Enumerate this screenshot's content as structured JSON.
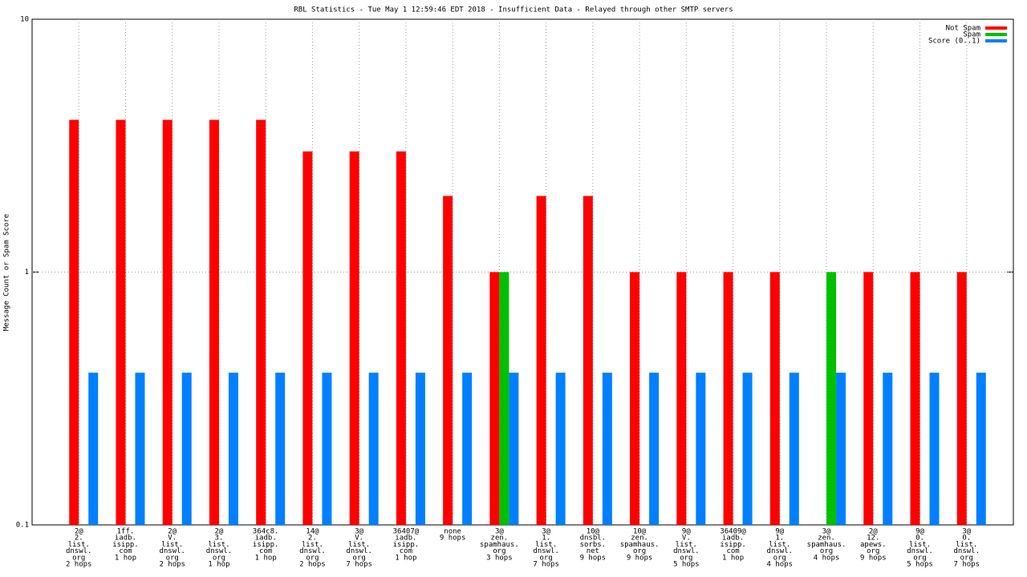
{
  "chart_data": {
    "type": "bar",
    "title": "RBL Statistics - Tue May  1 12:59:46 EDT 2018 - Insufficient Data - Relayed through other SMTP servers",
    "y_label": "Message Count or Spam Score",
    "log_y": true,
    "grid": true,
    "legend": "top-right",
    "categories": [
      [
        "2@",
        "2.",
        "list.",
        "dnswl.",
        "org",
        "2 hops"
      ],
      [
        "1ff.",
        "iadb.",
        "isipp.",
        "com",
        "1 hop"
      ],
      [
        "2@",
        "V.",
        "list.",
        "dnswl.",
        "org",
        "2 hops"
      ],
      [
        "2@",
        "3.",
        "list.",
        "dnswl.",
        "org",
        "1 hop"
      ],
      [
        "364c8.",
        "iadb.",
        "isipp.",
        "com",
        "1 hop"
      ],
      [
        "14@",
        "2.",
        "list.",
        "dnswl.",
        "org",
        "2 hops"
      ],
      [
        "3@",
        "V.",
        "list.",
        "dnswl.",
        "org",
        "7 hops"
      ],
      [
        "36407@",
        "iadb.",
        "isipp.",
        "com",
        "1 hop"
      ],
      [
        "none",
        "9 hops"
      ],
      [
        "3@",
        "zen.",
        "spamhaus.",
        "org",
        "3 hops"
      ],
      [
        "3@",
        "1.",
        "list.",
        "dnswl.",
        "org",
        "7 hops"
      ],
      [
        "10@",
        "dnsbl.",
        "sorbs.",
        "net",
        "9 hops"
      ],
      [
        "10@",
        "zen.",
        "spamhaus.",
        "org",
        "9 hops"
      ],
      [
        "9@",
        "V.",
        "list.",
        "dnswl.",
        "org",
        "5 hops"
      ],
      [
        "36409@",
        "iadb.",
        "isipp.",
        "com",
        "1 hop"
      ],
      [
        "9@",
        "1.",
        "list.",
        "dnswl.",
        "org",
        "4 hops"
      ],
      [
        "3@",
        "zen.",
        "spamhaus.",
        "org",
        "4 hops"
      ],
      [
        "2@",
        "12.",
        "apews.",
        "org",
        "9 hops"
      ],
      [
        "9@",
        "0.",
        "list.",
        "dnswl.",
        "org",
        "5 hops"
      ],
      [
        "3@",
        "0.",
        "list.",
        "dnswl.",
        "org",
        "7 hops"
      ]
    ],
    "series": [
      {
        "name": "Not Spam",
        "color": "#ff0000",
        "values": [
          4,
          4,
          4,
          4,
          4,
          3,
          3,
          3,
          2,
          1,
          2,
          2,
          1,
          1,
          1,
          1,
          null,
          1,
          1,
          1
        ]
      },
      {
        "name": "Spam",
        "color": "#00c000",
        "values": [
          null,
          null,
          null,
          null,
          null,
          null,
          null,
          null,
          null,
          1,
          null,
          null,
          null,
          null,
          null,
          null,
          1,
          null,
          null,
          null
        ]
      },
      {
        "name": "Score (0..1)",
        "color": "#0080ff",
        "values": [
          0.4,
          0.4,
          0.4,
          0.4,
          0.4,
          0.4,
          0.4,
          0.4,
          0.4,
          0.4,
          0.4,
          0.4,
          0.4,
          0.4,
          0.4,
          0.4,
          0.4,
          0.4,
          0.4,
          0.4
        ]
      }
    ],
    "ylim": [
      0.1,
      10
    ],
    "yticks": [
      0.1,
      1,
      10
    ]
  }
}
